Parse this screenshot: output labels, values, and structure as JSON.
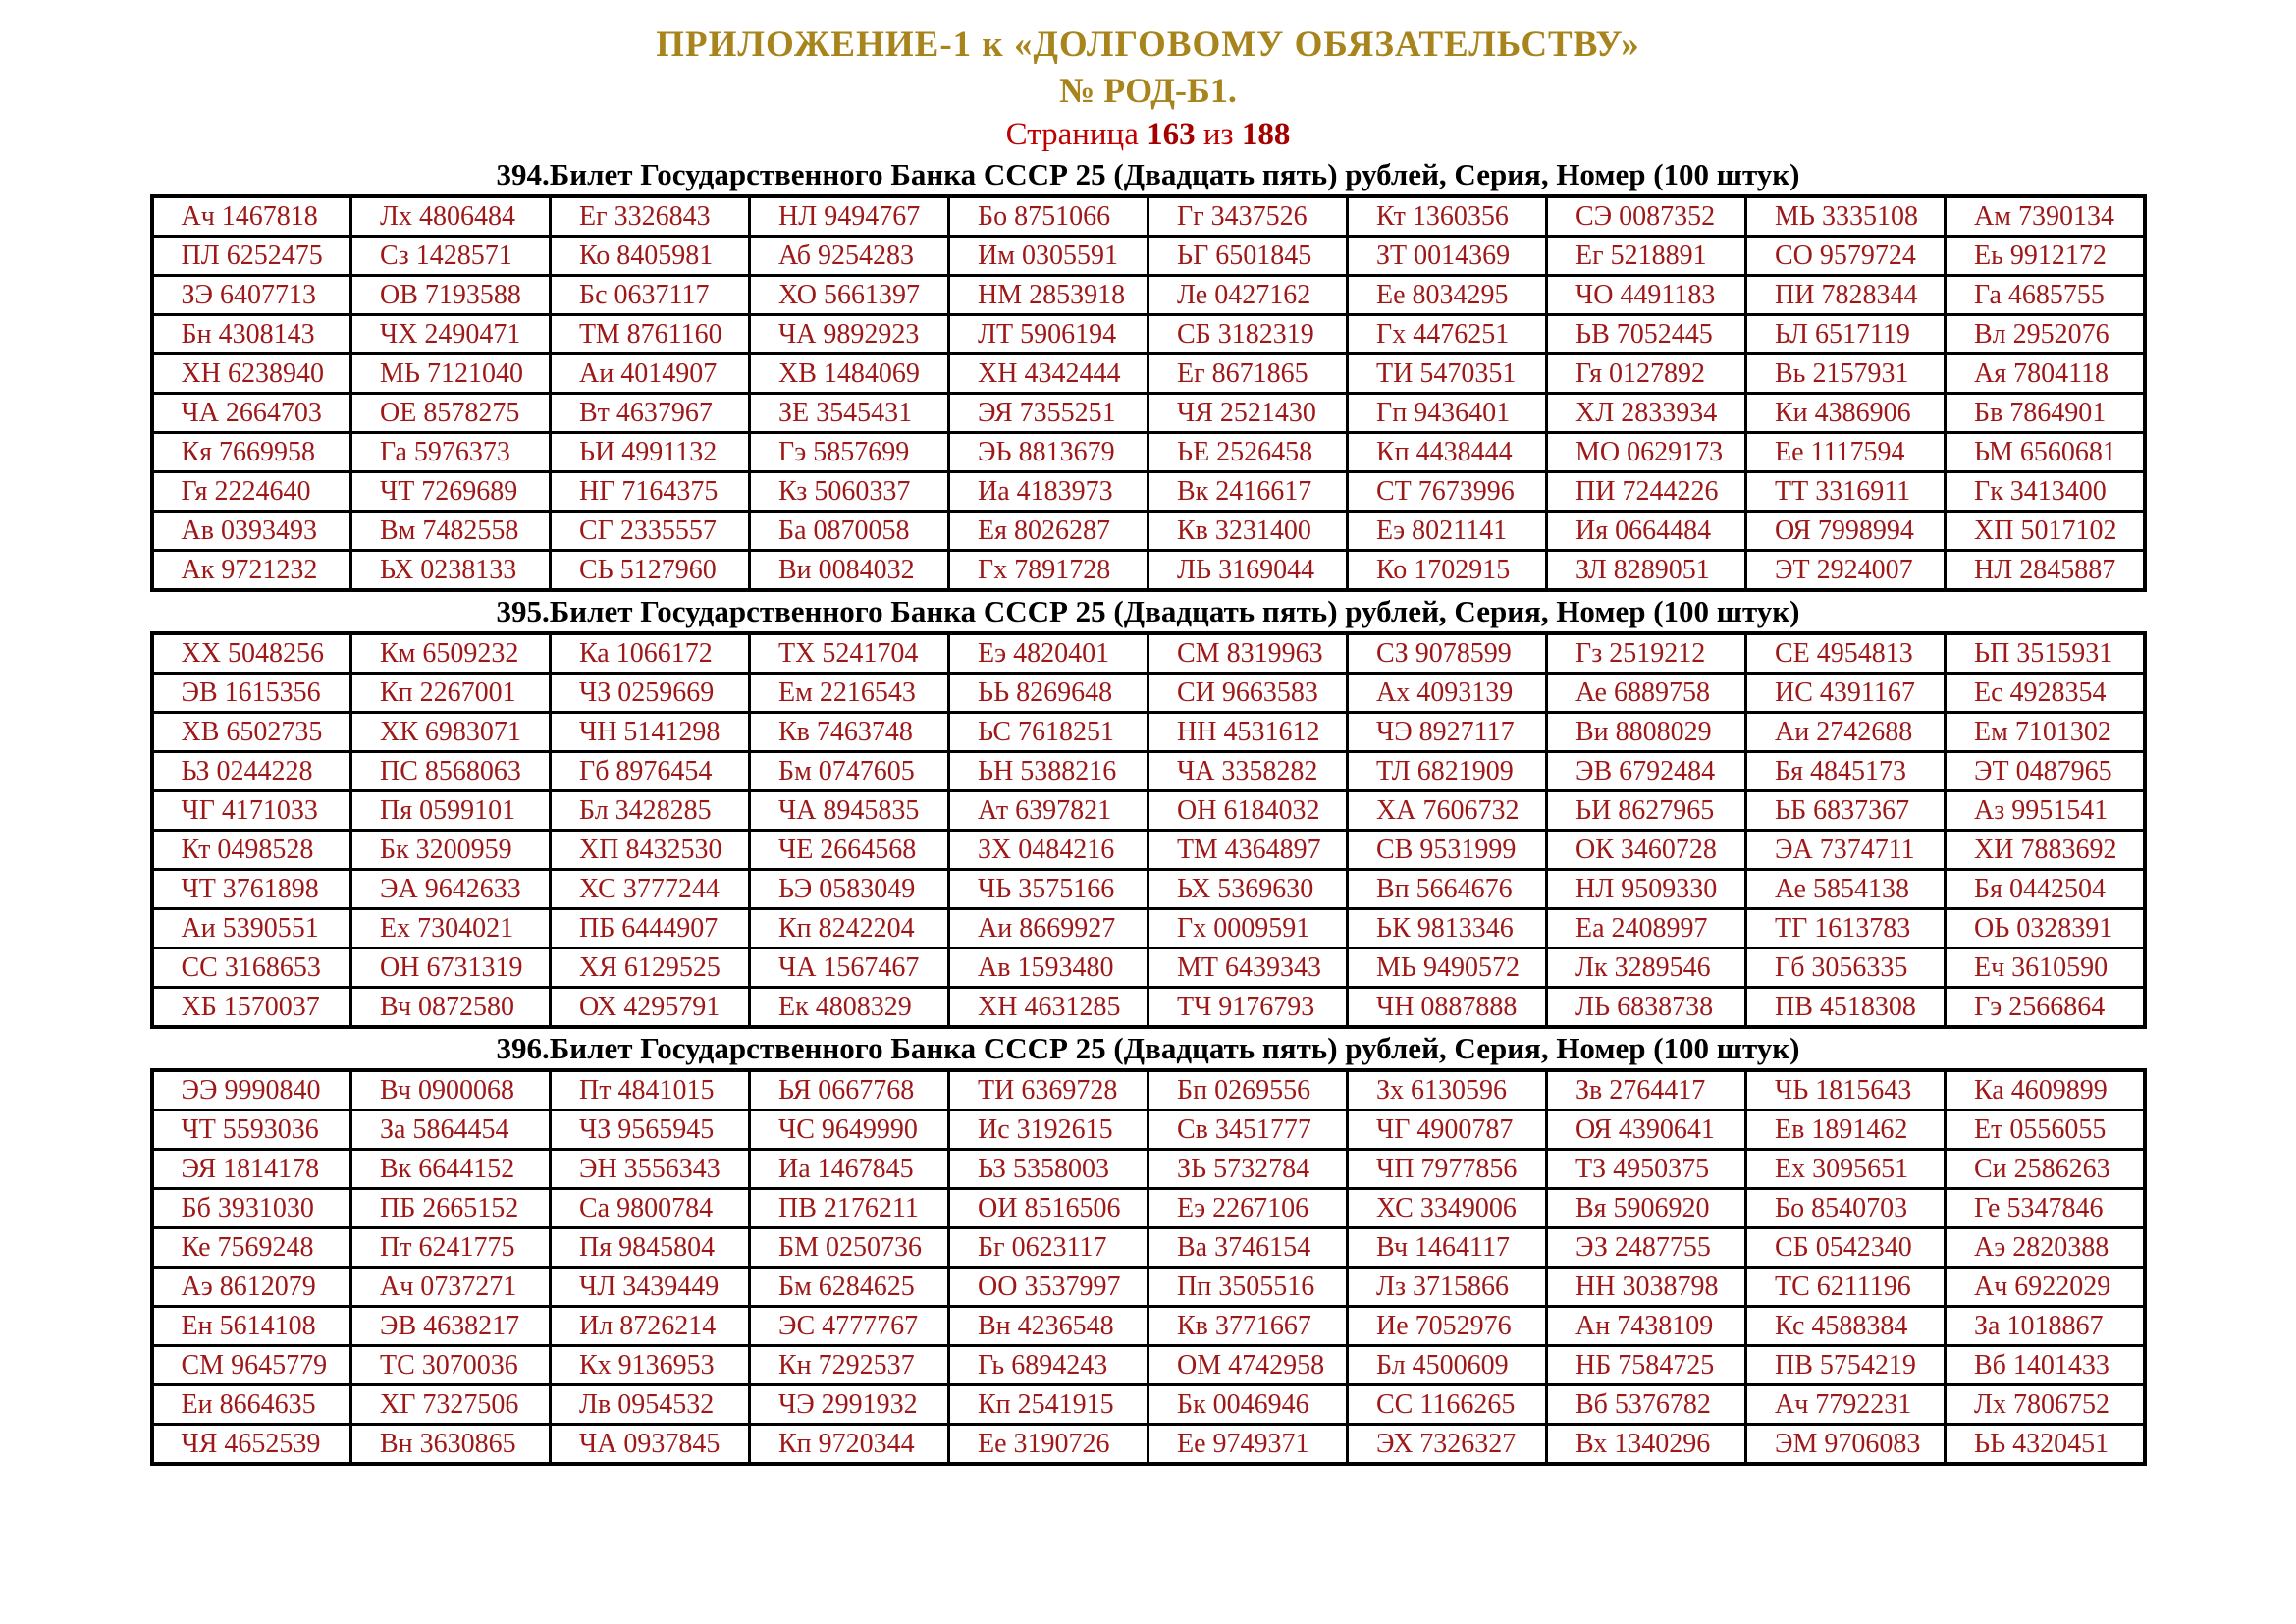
{
  "header": {
    "appendix_line": "ПРИЛОЖЕНИЕ-1 к «ДОЛГОВОМУ ОБЯЗАТЕЛЬСТВУ»",
    "doc_number_line": "№ РОД-Б1.",
    "page_word": "Страница",
    "page_current": "163",
    "of_word": "из",
    "page_total": "188"
  },
  "colors": {
    "gold": "#A8841C",
    "red": "#C00000",
    "red_bold": "#A50000",
    "cell_red": "#9E1818",
    "border_black": "#000000"
  },
  "tables": [
    {
      "title": "394.Билет Государственного Банка СССР 25 (Двадцать пять) рублей, Серия, Номер (100 штук)",
      "rows": [
        [
          "Ач 1467818",
          "Лх 4806484",
          "Ег 3326843",
          "НЛ 9494767",
          "Бо 8751066",
          "Гг 3437526",
          "Кт 1360356",
          "СЭ 0087352",
          "МЬ 3335108",
          "Ам 7390134"
        ],
        [
          "ПЛ 6252475",
          "Сз 1428571",
          "Ко 8405981",
          "Аб 9254283",
          "Им 0305591",
          "ЬГ 6501845",
          "ЗТ 0014369",
          "Ег 5218891",
          "СО 9579724",
          "Еь 9912172"
        ],
        [
          "ЗЭ 6407713",
          "ОВ 7193588",
          "Бс 0637117",
          "ХО 5661397",
          "НМ 2853918",
          "Ле 0427162",
          "Ее 8034295",
          "ЧО 4491183",
          "ПИ 7828344",
          "Га 4685755"
        ],
        [
          "Бн 4308143",
          "ЧХ 2490471",
          "ТМ 8761160",
          "ЧА 9892923",
          "ЛТ 5906194",
          "СБ 3182319",
          "Гх 4476251",
          "ЬВ 7052445",
          "ЬЛ 6517119",
          "Вл 2952076"
        ],
        [
          "ХН 6238940",
          "МЬ 7121040",
          "Аи 4014907",
          "ХВ 1484069",
          "ХН 4342444",
          "Ег 8671865",
          "ТИ 5470351",
          "Гя 0127892",
          "Вь 2157931",
          "Ая 7804118"
        ],
        [
          "ЧА 2664703",
          "ОЕ 8578275",
          "Вт 4637967",
          "ЗЕ 3545431",
          "ЭЯ 7355251",
          "ЧЯ 2521430",
          "Гп 9436401",
          "ХЛ 2833934",
          "Ки 4386906",
          "Бв 7864901"
        ],
        [
          "Кя 7669958",
          "Га 5976373",
          "ЬИ 4991132",
          "Гэ 5857699",
          "ЭЬ 8813679",
          "ЬЕ 2526458",
          "Кп 4438444",
          "МО 0629173",
          "Ее 1117594",
          "ЬМ 6560681"
        ],
        [
          "Гя 2224640",
          "ЧТ 7269689",
          "НГ 7164375",
          "Кз 5060337",
          "Иа 4183973",
          "Вк 2416617",
          "СТ 7673996",
          "ПИ 7244226",
          "ТТ 3316911",
          "Гк 3413400"
        ],
        [
          "Ав 0393493",
          "Вм 7482558",
          "СГ 2335557",
          "Ба 0870058",
          "Ея 8026287",
          "Кв 3231400",
          "Еэ 8021141",
          "Ия 0664484",
          "ОЯ 7998994",
          "ХП 5017102"
        ],
        [
          "Ак 9721232",
          "ЬХ 0238133",
          "СЬ 5127960",
          "Ви 0084032",
          "Гх 7891728",
          "ЛЬ 3169044",
          "Ко 1702915",
          "ЗЛ 8289051",
          "ЭТ 2924007",
          "НЛ 2845887"
        ]
      ]
    },
    {
      "title": "395.Билет Государственного Банка СССР 25 (Двадцать пять) рублей, Серия, Номер (100 штук)",
      "rows": [
        [
          "ХХ 5048256",
          "Км 6509232",
          "Ка 1066172",
          "ТХ 5241704",
          "Еэ 4820401",
          "СМ 8319963",
          "СЗ 9078599",
          "Гз 2519212",
          "СЕ 4954813",
          "ЬП 3515931"
        ],
        [
          "ЭВ 1615356",
          "Кп 2267001",
          "ЧЗ 0259669",
          "Ем 2216543",
          "ЬЬ 8269648",
          "СИ 9663583",
          "Ах 4093139",
          "Ае 6889758",
          "ИС 4391167",
          "Ес 4928354"
        ],
        [
          "ХВ 6502735",
          "ХК 6983071",
          "ЧН 5141298",
          "Кв 7463748",
          "ЬС 7618251",
          "НН 4531612",
          "ЧЭ 8927117",
          "Ви 8808029",
          "Аи 2742688",
          "Ем 7101302"
        ],
        [
          "ЬЗ 0244228",
          "ПС 8568063",
          "Гб 8976454",
          "Бм 0747605",
          "ЬН 5388216",
          "ЧА 3358282",
          "ТЛ 6821909",
          "ЭВ 6792484",
          "Бя 4845173",
          "ЭТ 0487965"
        ],
        [
          "ЧГ 4171033",
          "Пя 0599101",
          "Бл 3428285",
          "ЧА 8945835",
          "Ат 6397821",
          "ОН 6184032",
          "ХА 7606732",
          "ЬИ 8627965",
          "ЬБ 6837367",
          "Аз 9951541"
        ],
        [
          "Кт 0498528",
          "Бк 3200959",
          "ХП 8432530",
          "ЧЕ 2664568",
          "ЗХ 0484216",
          "ТМ 4364897",
          "СВ 9531999",
          "ОК 3460728",
          "ЭА 7374711",
          "ХИ 7883692"
        ],
        [
          "ЧТ 3761898",
          "ЭА 9642633",
          "ХС 3777244",
          "ЬЭ 0583049",
          "ЧЬ 3575166",
          "ЬХ 5369630",
          "Вп 5664676",
          "НЛ 9509330",
          "Ае 5854138",
          "Бя 0442504"
        ],
        [
          "Аи 5390551",
          "Ех 7304021",
          "ПБ 6444907",
          "Кп 8242204",
          "Аи 8669927",
          "Гх 0009591",
          "ЬК 9813346",
          "Еа 2408997",
          "ТГ 1613783",
          "ОЬ 0328391"
        ],
        [
          "СС 3168653",
          "ОН 6731319",
          "ХЯ 6129525",
          "ЧА 1567467",
          "Ав 1593480",
          "МТ 6439343",
          "МЬ 9490572",
          "Лк 3289546",
          "Гб 3056335",
          "Еч 3610590"
        ],
        [
          "ХБ 1570037",
          "Вч 0872580",
          "ОХ 4295791",
          "Ек 4808329",
          "ХН 4631285",
          "ТЧ 9176793",
          "ЧН 0887888",
          "ЛЬ 6838738",
          "ПВ 4518308",
          "Гэ 2566864"
        ]
      ]
    },
    {
      "title": "396.Билет Государственного Банка СССР 25 (Двадцать пять) рублей, Серия, Номер (100 штук)",
      "rows": [
        [
          "ЭЭ 9990840",
          "Вч 0900068",
          "Пт 4841015",
          "ЬЯ 0667768",
          "ТИ 6369728",
          "Бп 0269556",
          "Зх 6130596",
          "Зв 2764417",
          "ЧЬ 1815643",
          "Ка 4609899"
        ],
        [
          "ЧТ 5593036",
          "За 5864454",
          "ЧЗ 9565945",
          "ЧС 9649990",
          "Ис 3192615",
          "Св 3451777",
          "ЧГ 4900787",
          "ОЯ 4390641",
          "Ев 1891462",
          "Ет 0556055"
        ],
        [
          "ЭЯ 1814178",
          "Вк 6644152",
          "ЭН 3556343",
          "Иа 1467845",
          "ЬЗ 5358003",
          "ЗЬ 5732784",
          "ЧП 7977856",
          "ТЗ 4950375",
          "Ех 3095651",
          "Си 2586263"
        ],
        [
          "Бб 3931030",
          "ПБ 2665152",
          "Са 9800784",
          "ПВ 2176211",
          "ОИ 8516506",
          "Еэ 2267106",
          "ХС 3349006",
          "Вя 5906920",
          "Бо 8540703",
          "Ге 5347846"
        ],
        [
          "Ке 7569248",
          "Пт 6241775",
          "Пя 9845804",
          "БМ 0250736",
          "Бг 0623117",
          "Ва 3746154",
          "Вч 1464117",
          "ЭЗ 2487755",
          "СБ 0542340",
          "Аэ 2820388"
        ],
        [
          "Аэ 8612079",
          "Ач 0737271",
          "ЧЛ 3439449",
          "Бм 6284625",
          "ОО 3537997",
          "Пп 3505516",
          "Лз 3715866",
          "НН 3038798",
          "ТС 6211196",
          "Ач 6922029"
        ],
        [
          "Ен 5614108",
          "ЭВ 4638217",
          "Ил 8726214",
          "ЭС 4777767",
          "Вн 4236548",
          "Кв 3771667",
          "Ие 7052976",
          "Ан 7438109",
          "Кс 4588384",
          "За 1018867"
        ],
        [
          "СМ 9645779",
          "ТС 3070036",
          "Кх 9136953",
          "Кн 7292537",
          "Гь 6894243",
          "ОМ 4742958",
          "Бл 4500609",
          "НБ 7584725",
          "ПВ 5754219",
          "Вб 1401433"
        ],
        [
          "Еи 8664635",
          "ХГ 7327506",
          "Лв 0954532",
          "ЧЭ 2991932",
          "Кп 2541915",
          "Бк 0046946",
          "СС 1166265",
          "Вб 5376782",
          "Ач 7792231",
          "Лх 7806752"
        ],
        [
          "ЧЯ 4652539",
          "Вн 3630865",
          "ЧА 0937845",
          "Кп 9720344",
          "Ее 3190726",
          "Ее 9749371",
          "ЭХ 7326327",
          "Вх 1340296",
          "ЭМ 9706083",
          "ЬЬ 4320451"
        ]
      ]
    }
  ]
}
